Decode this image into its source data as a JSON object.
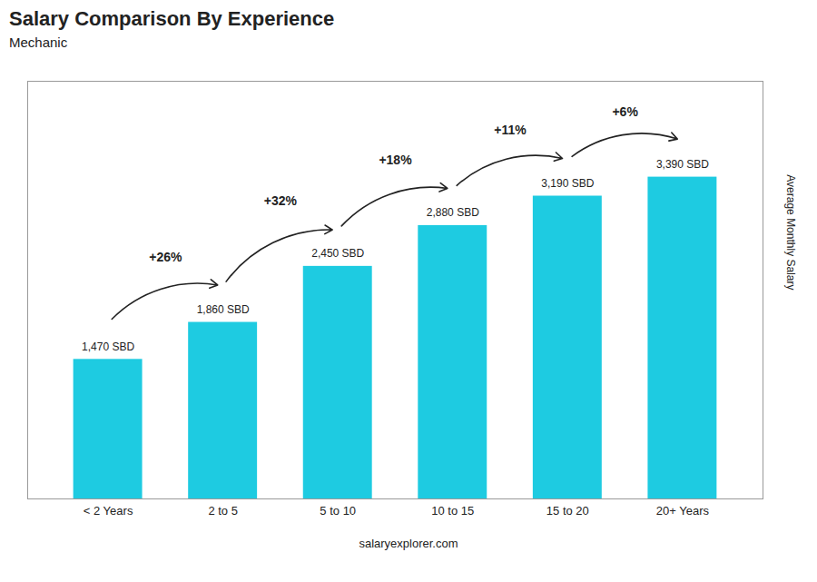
{
  "chart_data": {
    "type": "bar",
    "title": "Salary Comparison By Experience",
    "subtitle": "Mechanic",
    "categories": [
      "< 2 Years",
      "2 to 5",
      "5 to 10",
      "10 to 15",
      "15 to 20",
      "20+ Years"
    ],
    "values": [
      1470,
      1860,
      2450,
      2880,
      3190,
      3390
    ],
    "value_labels": [
      "1,470 SBD",
      "1,860 SBD",
      "2,450 SBD",
      "2,880 SBD",
      "3,190 SBD",
      "3,390 SBD"
    ],
    "data_labels": true,
    "color": "#1ECBE1",
    "ylabel": "Average Monthly Salary",
    "ylim": [
      0,
      4400
    ],
    "tick_labels": "x",
    "grid": false,
    "annotations": [
      "+26%",
      "+32%",
      "+18%",
      "+11%",
      "+6%"
    ],
    "caption": "salaryexplorer.com"
  }
}
